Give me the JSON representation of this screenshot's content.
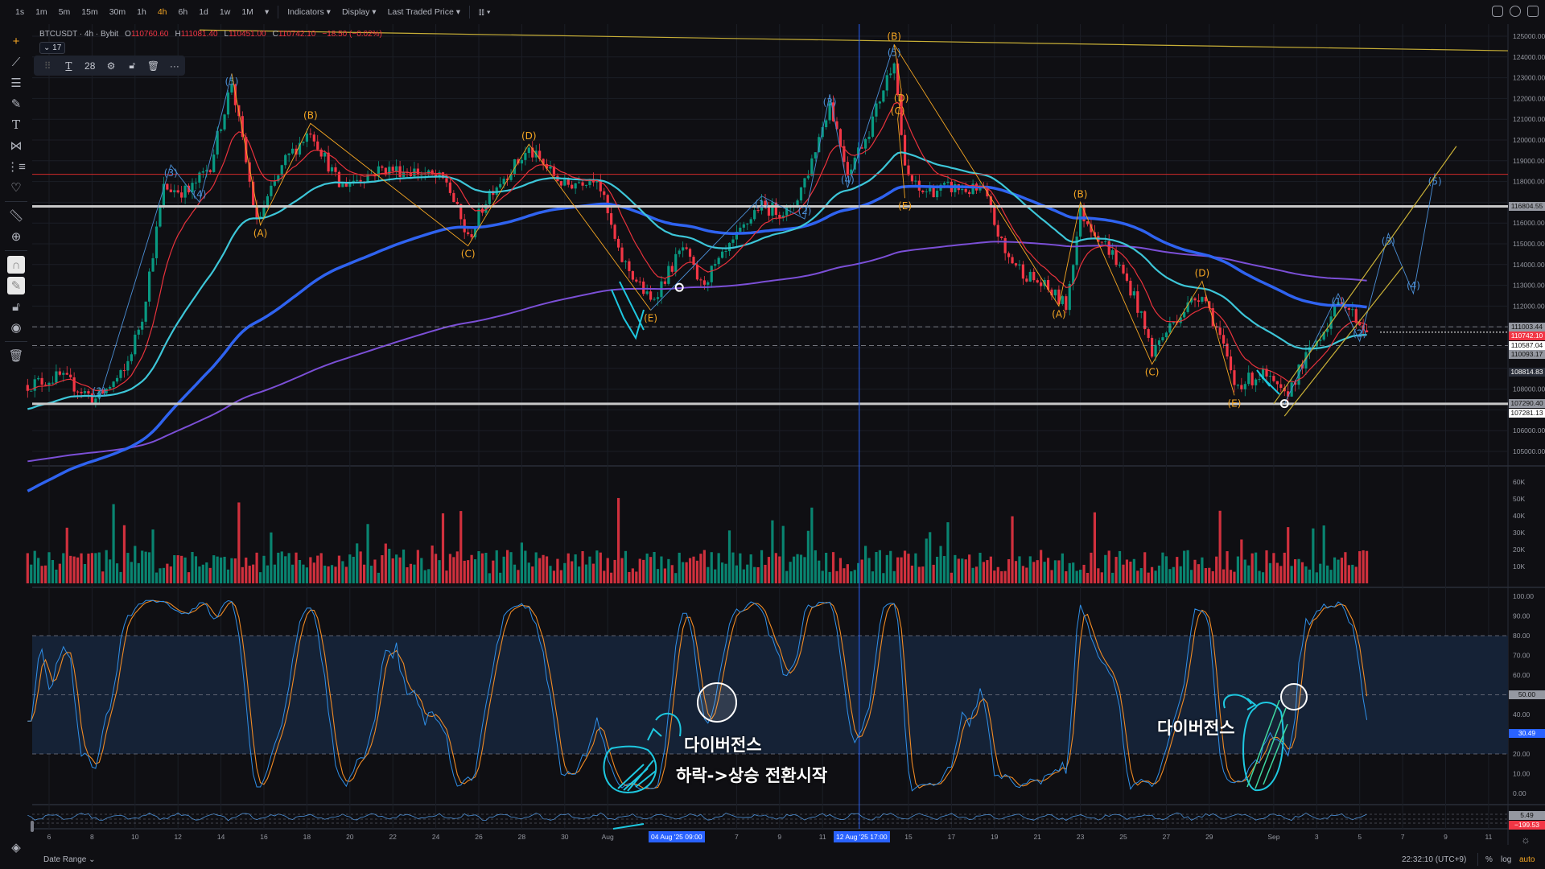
{
  "toolbar": {
    "intervals": [
      "1s",
      "1m",
      "5m",
      "15m",
      "30m",
      "1h",
      "4h",
      "6h",
      "1d",
      "1w",
      "1M"
    ],
    "active_interval": "4h",
    "interval_more": "▾",
    "indicators": "Indicators ▾",
    "display": "Display ▾",
    "price_source": "Last Traded Price ▾",
    "chart_type": "candles-icon ▾",
    "chart_type_glyph": "⫾⫾ ▾",
    "right_icons": [
      "camera-icon",
      "settings-icon",
      "fullscreen-icon"
    ]
  },
  "left_toolbar": [
    "crosshair-icon",
    "trend-line-icon",
    "fib-lines-icon",
    "brush-icon",
    "text-icon",
    "pattern-icon",
    "forecast-icon",
    "heart-icon",
    "ruler-icon",
    "zoom-in-icon",
    "magnet-icon",
    "lock-drawing-icon",
    "lock-icon",
    "eye-icon",
    "trash-icon"
  ],
  "legend": {
    "symbol": "BTCUSDT · 4h · Bybit",
    "o_label": "O",
    "o": "110760.60",
    "h_label": "H",
    "h": "111081.40",
    "l_label": "L",
    "l": "110451.00",
    "c_label": "C",
    "c": "110742.10",
    "change": "−18.50 (−0.02%)",
    "collapse": "⌄ 17"
  },
  "text_toolbar": {
    "font_size": "28",
    "items": [
      "drag-handle",
      "text-color",
      "font-size",
      "settings",
      "unlock",
      "delete",
      "more"
    ]
  },
  "colors": {
    "up": "#089981",
    "down": "#f23645",
    "bg": "#0f0f13",
    "ema_fast": "#e8323c",
    "ema_mid": "#3dc6d8",
    "ema_slow": "#2f63f0",
    "ema_long": "#7b4fd6",
    "wave_blue": "#4b8fd6",
    "wave_orange": "#f5a623",
    "stoch_k": "#2f8fe8",
    "stoch_d": "#f08a24",
    "accent": "#2962ff"
  },
  "price_axis": {
    "labels": [
      "125000.00",
      "124000.00",
      "123000.00",
      "122000.00",
      "121000.00",
      "120000.00",
      "119000.00",
      "118000.00",
      "116000.00",
      "115000.00",
      "114000.00",
      "113000.00",
      "112000.00",
      "108000.00",
      "106000.00",
      "105000.00"
    ],
    "badges": [
      {
        "value": "116804.55",
        "style": "grey"
      },
      {
        "value": "111003.44",
        "style": "grey"
      },
      {
        "value": "110742.10",
        "style": "red"
      },
      {
        "value": "110587.04",
        "style": "white"
      },
      {
        "value": "110093.17",
        "style": "grey"
      },
      {
        "value": "108814.83",
        "style": "dark"
      },
      {
        "value": "107290.40",
        "style": "grey"
      },
      {
        "value": "107281.13",
        "style": "white"
      }
    ]
  },
  "volume_axis": [
    "60K",
    "50K",
    "40K",
    "30K",
    "20K",
    "10K"
  ],
  "stoch_axis": {
    "labels": [
      "100.00",
      "90.00",
      "80.00",
      "70.00",
      "60.00",
      "40.00",
      "20.00",
      "10.00",
      "0.00"
    ],
    "badge_mid": "50.00",
    "badge_value": "30.49"
  },
  "small_indicator_axis": {
    "badge_1": "5.49",
    "badge_2": "−199.53"
  },
  "time_axis": {
    "labels": [
      "6",
      "8",
      "10",
      "12",
      "14",
      "16",
      "18",
      "20",
      "22",
      "24",
      "26",
      "28",
      "30",
      "Aug",
      "7",
      "9",
      "11",
      "15",
      "17",
      "19",
      "21",
      "23",
      "25",
      "27",
      "29",
      "Sep",
      "3",
      "5",
      "7",
      "9",
      "11"
    ],
    "highlight_1": "04 Aug '25   09:00",
    "highlight_2": "12 Aug '25   17:00"
  },
  "bottom_bar": {
    "date_range": "Date Range ⌄",
    "clock": "22:32:10 (UTC+9)",
    "percent": "%",
    "log": "log",
    "auto": "auto"
  },
  "annotations": {
    "divergence_1": "다이버전스",
    "reversal": "하락->상승 전환시작",
    "divergence_2": "다이버전스"
  },
  "chart_data": {
    "type": "candlestick",
    "symbol": "BTCUSDT",
    "interval": "4h",
    "price_range": [
      105000,
      125000
    ],
    "price_path": [
      [
        "2025-07-05 00:00",
        108200
      ],
      [
        "2025-07-06 12:00",
        108600
      ],
      [
        "2025-07-08 04:00",
        107500
      ],
      [
        "2025-07-09 12:00",
        108800
      ],
      [
        "2025-07-10 08:00",
        111500
      ],
      [
        "2025-07-11 08:00",
        117700
      ],
      [
        "2025-07-12 12:00",
        117500
      ],
      [
        "2025-07-13 12:00",
        118800
      ],
      [
        "2025-07-14 12:00",
        122800
      ],
      [
        "2025-07-15 16:00",
        116000
      ],
      [
        "2025-07-17 00:00",
        119000
      ],
      [
        "2025-07-18 04:00",
        120500
      ],
      [
        "2025-07-19 12:00",
        117800
      ],
      [
        "2025-07-21 12:00",
        118600
      ],
      [
        "2025-07-23 00:00",
        118500
      ],
      [
        "2025-07-24 12:00",
        118000
      ],
      [
        "2025-07-25 12:00",
        115200
      ],
      [
        "2025-07-26 12:00",
        117500
      ],
      [
        "2025-07-28 08:00",
        119500
      ],
      [
        "2025-07-30 00:00",
        117800
      ],
      [
        "2025-07-31 12:00",
        118300
      ],
      [
        "2025-08-01 12:00",
        114500
      ],
      [
        "2025-08-03 00:00",
        112200
      ],
      [
        "2025-08-04 12:00",
        114800
      ],
      [
        "2025-08-05 08:00",
        113000
      ],
      [
        "2025-08-06 12:00",
        114500
      ],
      [
        "2025-08-08 00:00",
        116800
      ],
      [
        "2025-08-09 12:00",
        116500
      ],
      [
        "2025-08-10 08:00",
        118500
      ],
      [
        "2025-08-11 08:00",
        121800
      ],
      [
        "2025-08-12 04:00",
        118500
      ],
      [
        "2025-08-13 04:00",
        120500
      ],
      [
        "2025-08-14 08:00",
        124000
      ],
      [
        "2025-08-14 20:00",
        118500
      ],
      [
        "2025-08-15 12:00",
        117500
      ],
      [
        "2025-08-17 00:00",
        117700
      ],
      [
        "2025-08-18 12:00",
        117500
      ],
      [
        "2025-08-19 12:00",
        114500
      ],
      [
        "2025-08-20 12:00",
        113500
      ],
      [
        "2025-08-21 12:00",
        112800
      ],
      [
        "2025-08-22 08:00",
        112000
      ],
      [
        "2025-08-23 00:00",
        116500
      ],
      [
        "2025-08-24 12:00",
        114500
      ],
      [
        "2025-08-25 12:00",
        112500
      ],
      [
        "2025-08-26 08:00",
        109800
      ],
      [
        "2025-08-27 12:00",
        111500
      ],
      [
        "2025-08-28 16:00",
        112700
      ],
      [
        "2025-08-29 12:00",
        110500
      ],
      [
        "2025-08-30 04:00",
        108200
      ],
      [
        "2025-08-31 12:00",
        108700
      ],
      [
        "2025-09-01 12:00",
        107600
      ],
      [
        "2025-09-02 12:00",
        109500
      ],
      [
        "2025-09-03 12:00",
        111200
      ],
      [
        "2025-09-04 04:00",
        112300
      ],
      [
        "2025-09-05 08:00",
        110742.1
      ]
    ],
    "horizontal_levels": [
      {
        "price": 118350,
        "color": "#d22a2a",
        "style": "solid"
      },
      {
        "price": 116804.55,
        "color": "#c8c8c8",
        "style": "thick"
      },
      {
        "price": 107290.4,
        "color": "#c8c8c8",
        "style": "thick"
      },
      {
        "price": 111003.44,
        "color": "#9598a1",
        "style": "dashed"
      },
      {
        "price": 110093.17,
        "color": "#9598a1",
        "style": "dashed"
      }
    ],
    "trendline": {
      "from": [
        "2025-07-13 00:00",
        125300
      ],
      "to": [
        "2025-09-12 00:00",
        124300
      ],
      "color": "#c9b037"
    },
    "vertical_marker": "2025-08-12 17:00",
    "waves": [
      {
        "color": "#4b8fd6",
        "points": [
          [
            "2025-07-08 08:00",
            107500,
            "(2)"
          ],
          [
            "2025-07-11 16:00",
            118800,
            "(3)"
          ],
          [
            "2025-07-13 00:00",
            117000,
            "(4)"
          ],
          [
            "2025-07-14 12:00",
            123200,
            "(5)"
          ]
        ]
      },
      {
        "color": "#f5a623",
        "points": [
          [
            "2025-07-14 12:00",
            123200,
            ""
          ],
          [
            "2025-07-15 20:00",
            115900,
            "(A)"
          ],
          [
            "2025-07-18 04:00",
            120800,
            "(B)"
          ],
          [
            "2025-07-25 12:00",
            114900,
            "(C)"
          ],
          [
            "2025-07-28 08:00",
            119800,
            "(D)"
          ],
          [
            "2025-08-03 00:00",
            111800,
            "(E)"
          ]
        ]
      },
      {
        "color": "#4b8fd6",
        "points": [
          [
            "2025-08-03 00:00",
            111800,
            ""
          ],
          [
            "2025-08-08 04:00",
            117300,
            "(1)"
          ],
          [
            "2025-08-10 04:00",
            116200,
            "(2)"
          ],
          [
            "2025-08-11 08:00",
            122200,
            "(3)"
          ],
          [
            "2025-08-12 04:00",
            117700,
            "(4)"
          ],
          [
            "2025-08-14 08:00",
            124600,
            "(5)"
          ]
        ]
      },
      {
        "color": "#f5a623",
        "points": [
          [
            "2025-08-14 08:00",
            124600,
            "(B)"
          ],
          [
            "2025-08-14 16:00",
            122400,
            "(D)"
          ],
          [
            "2025-08-14 12:00",
            121000,
            "(C)"
          ],
          [
            "2025-08-14 20:00",
            117200,
            "(E)"
          ]
        ]
      },
      {
        "color": "#f5a623",
        "points": [
          [
            "2025-08-14 08:00",
            124600,
            ""
          ],
          [
            "2025-08-22 00:00",
            112000,
            "(A)"
          ],
          [
            "2025-08-23 00:00",
            117000,
            "(B)"
          ],
          [
            "2025-08-26 08:00",
            109200,
            "(C)"
          ],
          [
            "2025-08-28 16:00",
            113200,
            "(D)"
          ],
          [
            "2025-08-30 04:00",
            107700,
            "(E)"
          ]
        ]
      },
      {
        "color": "#4b8fd6",
        "points": [
          [
            "2025-09-01 12:00",
            107300,
            ""
          ],
          [
            "2025-09-04 00:00",
            112600,
            "(1)"
          ],
          [
            "2025-09-05 00:00",
            110300,
            "(2)"
          ],
          [
            "2025-09-06 08:00",
            115500,
            "(3)"
          ],
          [
            "2025-09-07 12:00",
            112600,
            "(4)"
          ],
          [
            "2025-09-08 12:00",
            118400,
            "(5)"
          ]
        ]
      }
    ],
    "channel": [
      {
        "from": [
          "2025-09-01 00:00",
          107300
        ],
        "to": [
          "2025-09-09 12:00",
          119700
        ]
      },
      {
        "from": [
          "2025-09-01 12:00",
          106700
        ],
        "to": [
          "2025-09-07 00:00",
          113900
        ]
      }
    ],
    "indicators": [
      "EMA fast",
      "EMA mid",
      "EMA slow",
      "EMA long",
      "Volume",
      "Stochastic RSI"
    ]
  }
}
